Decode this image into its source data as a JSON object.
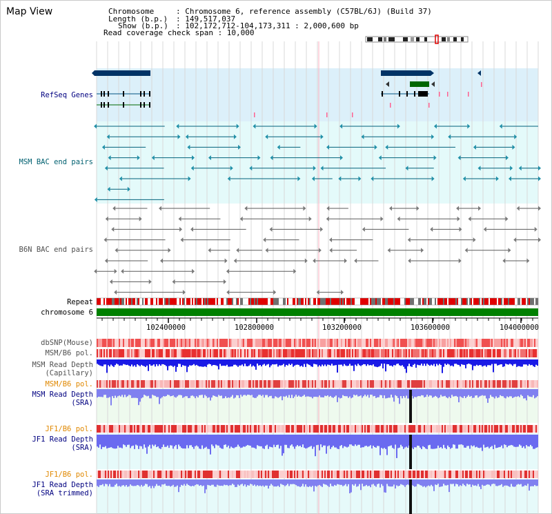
{
  "title": "Map View",
  "header": {
    "chromosome_key": "Chromosome",
    "chromosome_val": ": Chromosome 6, reference assembly (C57BL/6J) (Build 37)",
    "length_key": "Length (b.p.)",
    "length_val": ": 149,517,037",
    "show_key": "Show (b.p.)",
    "show_val": ": 102,172,712-104,173,311 : 2,000,600 bp",
    "coverage_line": "Read coverage check span : 10,000"
  },
  "tracks": {
    "refseq": "RefSeq Genes",
    "msm_bac": "MSM BAC end pairs",
    "b6n_bac": "B6N BAC end pairs",
    "repeat": "Repeat",
    "chromosome": "chromosome 6",
    "dbsnp": "dbSNP(Mouse)",
    "msm_b6_pol_1": "MSM/B6 pol.",
    "msm_read_depth_cap_1": "MSM Read Depth",
    "msm_read_depth_cap_2": "(Capillary)",
    "msm_b6_pol_2": "MSM/B6 pol.",
    "msm_read_depth_sra_1": "MSM Read Depth",
    "msm_read_depth_sra_2": "(SRA)",
    "jf1_b6_pol_1": "JF1/B6 pol.",
    "jf1_read_depth_sra_1": "JF1 Read Depth",
    "jf1_read_depth_sra_2": "(SRA)",
    "jf1_b6_pol_2": "JF1/B6 pol.",
    "jf1_read_depth_trim_1": "JF1 Read Depth",
    "jf1_read_depth_trim_2": "(SRA trimmed)"
  },
  "axis": {
    "ticks": [
      "102400000",
      "102800000",
      "103200000",
      "103600000",
      "104000000"
    ]
  },
  "colors": {
    "navy": "#000080",
    "teal": "#006070",
    "orange": "#e08800",
    "gene_blue": "#003366",
    "gene_green": "#006600",
    "chrom_green": "#008000",
    "depth_blue": "#1a1ae6",
    "depth_light": "#8080f0"
  }
}
